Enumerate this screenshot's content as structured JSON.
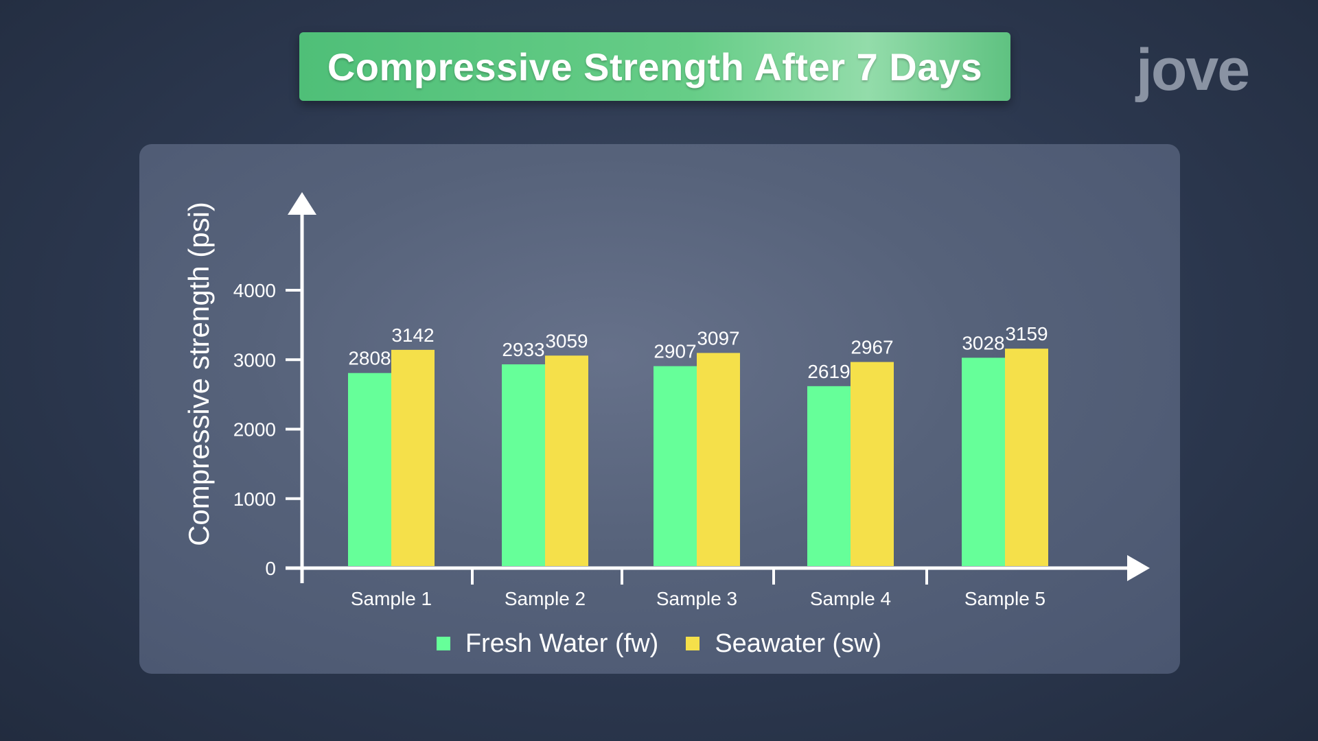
{
  "header": {
    "title": "Compressive Strength After 7 Days",
    "logo_text": "jove"
  },
  "colors": {
    "fresh_water": "#66ff99",
    "seawater": "#f5e04a",
    "title_bar": "#5cc27f"
  },
  "chart_data": {
    "type": "bar",
    "title": "Compressive Strength After 7 Days",
    "xlabel": "",
    "ylabel": "Compressive strength (psi)",
    "categories": [
      "Sample 1",
      "Sample 2",
      "Sample 3",
      "Sample 4",
      "Sample 5"
    ],
    "series": [
      {
        "name": "Fresh Water (fw)",
        "values": [
          2808,
          2933,
          2907,
          2619,
          3028
        ]
      },
      {
        "name": "Seawater (sw)",
        "values": [
          3142,
          3059,
          3097,
          2967,
          3159
        ]
      }
    ],
    "yticks": [
      0,
      1000,
      2000,
      3000,
      4000
    ],
    "ylim": [
      0,
      4000
    ],
    "grid": false,
    "legend_position": "bottom"
  }
}
